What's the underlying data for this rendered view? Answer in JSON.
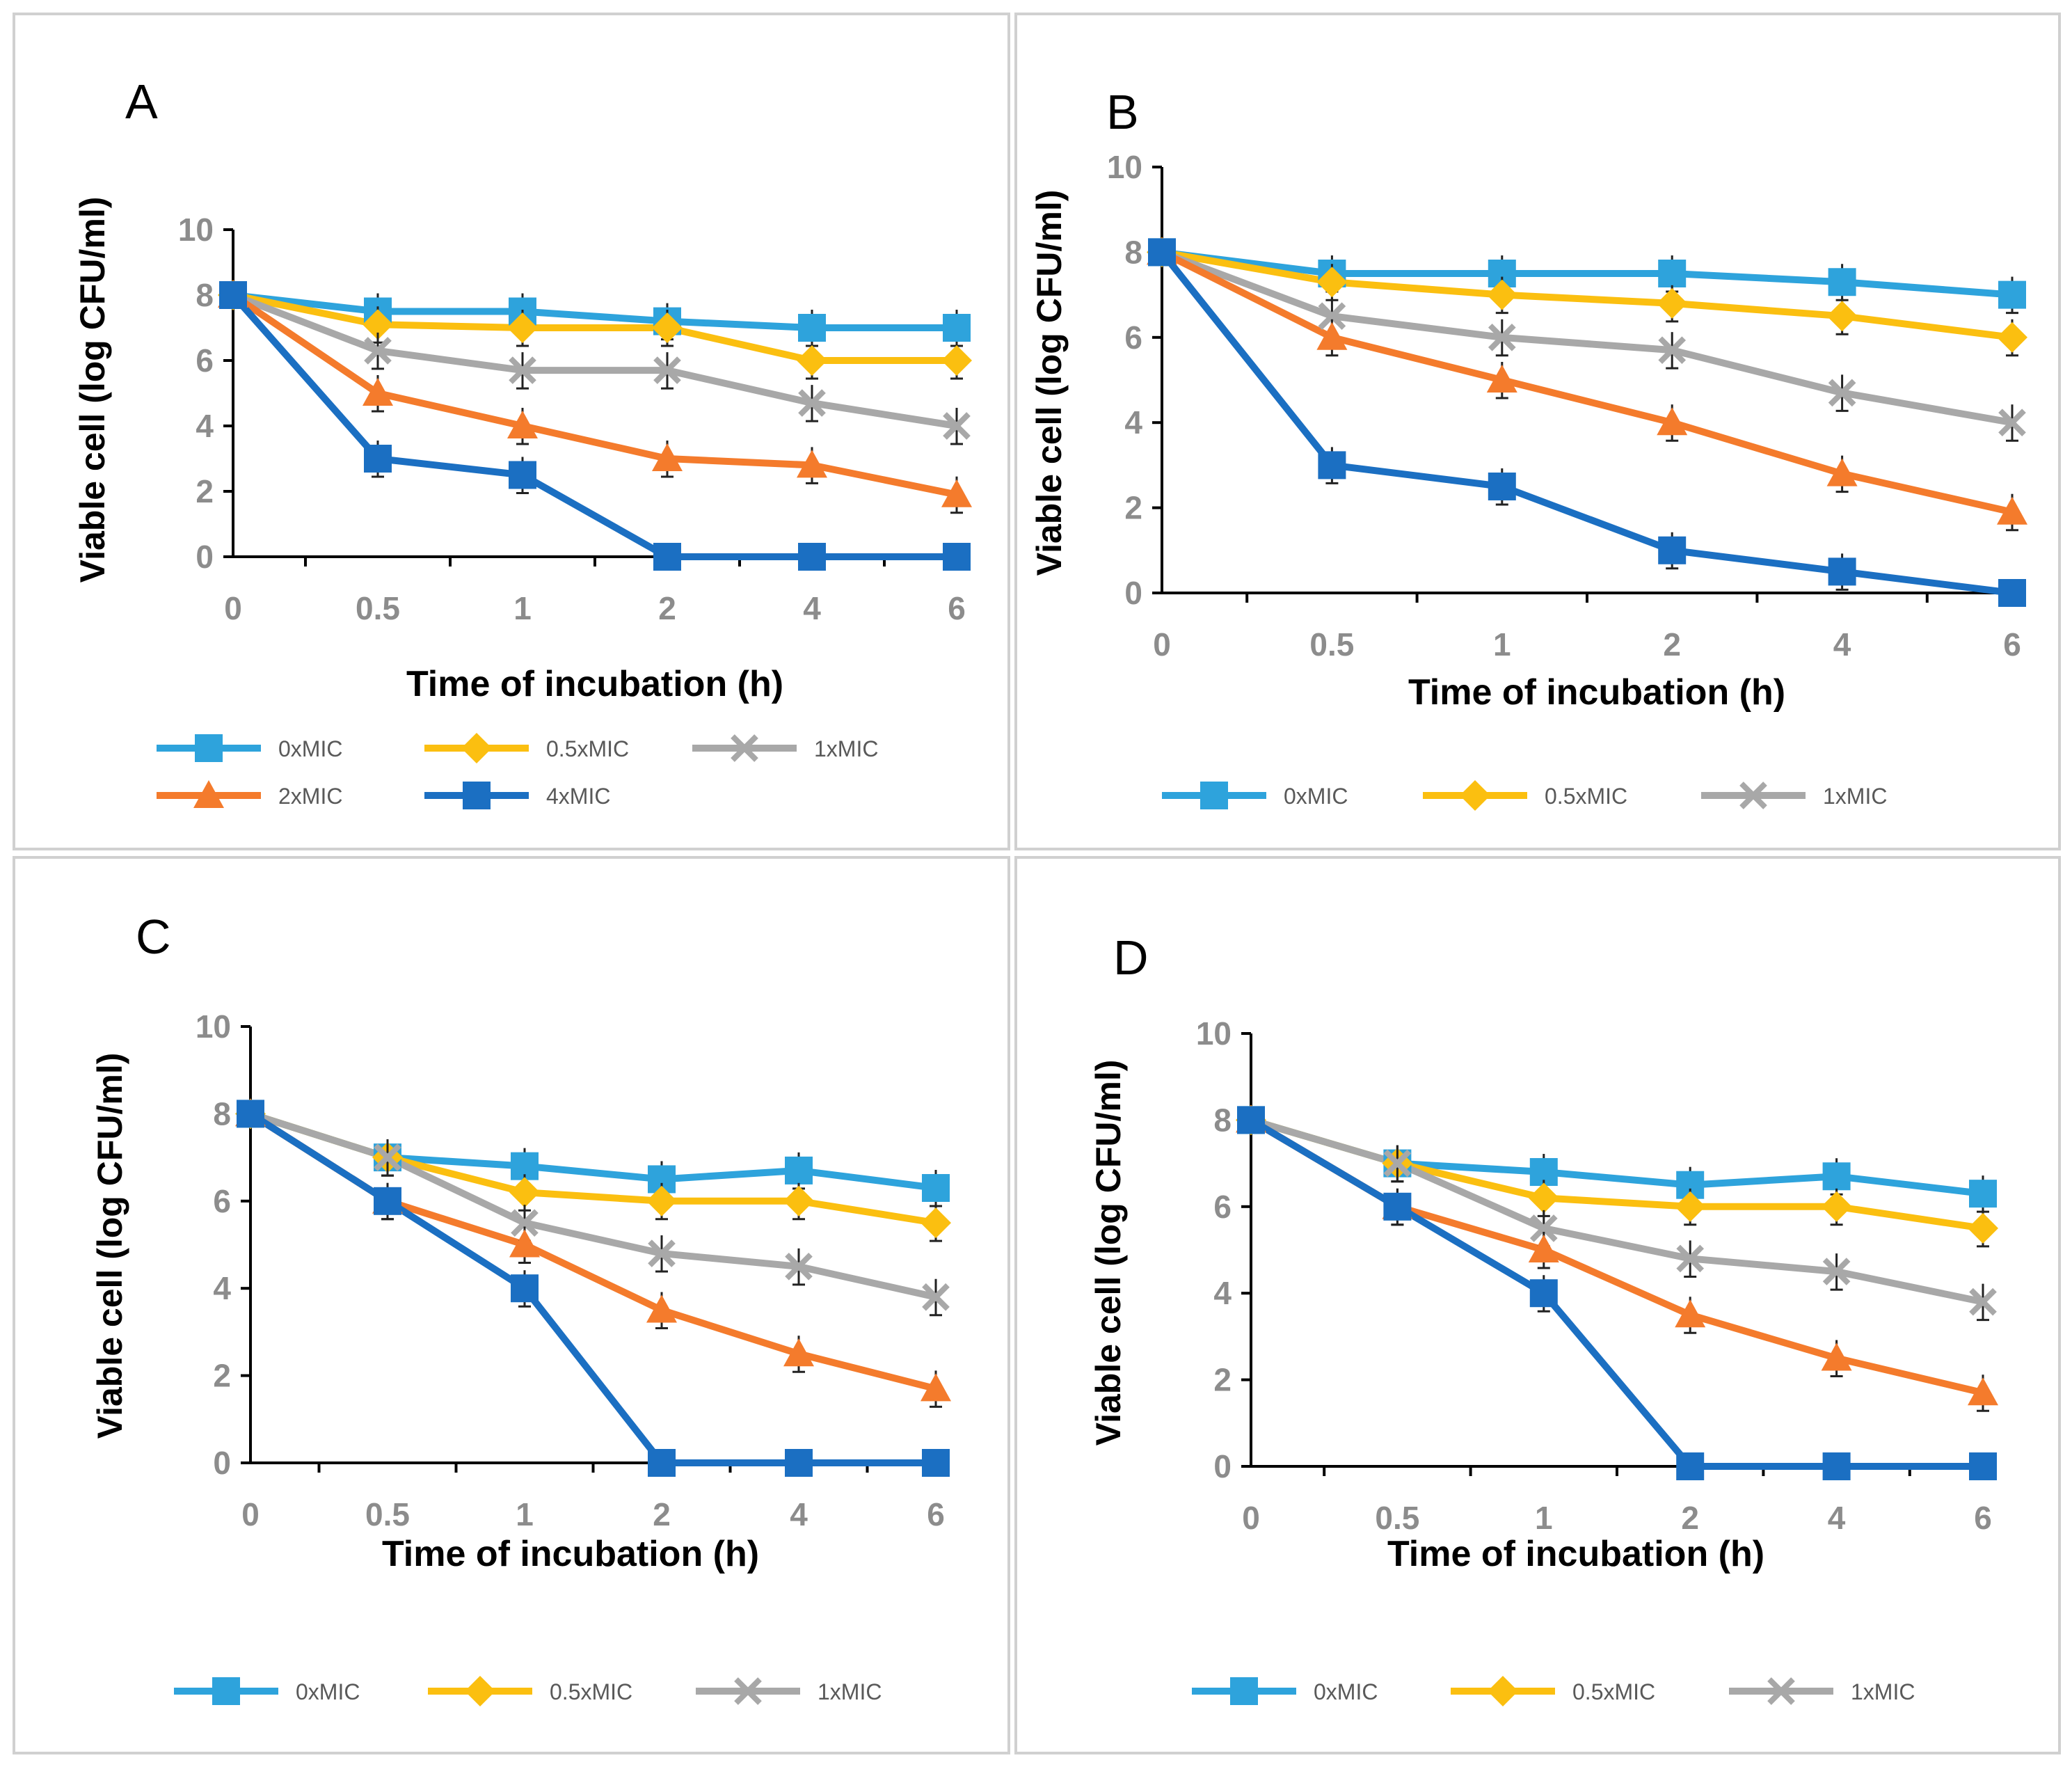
{
  "figure": {
    "panels": [
      "A",
      "B",
      "C",
      "D"
    ]
  },
  "colors": {
    "0xMIC": "#2ea3dc",
    "0.5xMIC": "#fbbf10",
    "1xMIC": "#a8a8a8",
    "2xMIC": "#f47b2c",
    "4xMIC": "#1b6fc2",
    "axis": "#000000",
    "tick_label": "#8c8c8c",
    "panel_border": "#d0d0d0"
  },
  "chart_data": [
    {
      "panel": "A",
      "type": "line",
      "xlabel": "Time of incubation (h)",
      "ylabel": "Viable cell (log CFU/ml)",
      "categories": [
        "0",
        "0.5",
        "1",
        "2",
        "4",
        "6"
      ],
      "ylim": [
        0,
        10
      ],
      "yticks": [
        "0",
        "2",
        "4",
        "6",
        "8",
        "10"
      ],
      "series": [
        {
          "name": "0xMIC",
          "marker": "square",
          "values": [
            8,
            7.5,
            7.5,
            7.2,
            7.0,
            7.0
          ]
        },
        {
          "name": "0.5xMIC",
          "marker": "diamond",
          "values": [
            8,
            7.1,
            7.0,
            7.0,
            6.0,
            6.0
          ]
        },
        {
          "name": "1xMIC",
          "marker": "x",
          "values": [
            8,
            6.3,
            5.7,
            5.7,
            4.7,
            4.0
          ]
        },
        {
          "name": "2xMIC",
          "marker": "triangle",
          "values": [
            8,
            5.0,
            4.0,
            3.0,
            2.8,
            1.9
          ]
        },
        {
          "name": "4xMIC",
          "marker": "square",
          "values": [
            8,
            3.0,
            2.5,
            0,
            0,
            0
          ]
        }
      ],
      "legend": [
        "0xMIC",
        "0.5xMIC",
        "1xMIC",
        "2xMIC",
        "4xMIC"
      ]
    },
    {
      "panel": "B",
      "type": "line",
      "xlabel": "Time of incubation (h)",
      "ylabel": "Viable cell (log CFU/ml)",
      "categories": [
        "0",
        "0.5",
        "1",
        "2",
        "4",
        "6"
      ],
      "ylim": [
        0,
        10
      ],
      "yticks": [
        "0",
        "2",
        "4",
        "6",
        "8",
        "10"
      ],
      "series": [
        {
          "name": "0xMIC",
          "marker": "square",
          "values": [
            8,
            7.5,
            7.5,
            7.5,
            7.3,
            7.0
          ]
        },
        {
          "name": "0.5xMIC",
          "marker": "diamond",
          "values": [
            8,
            7.3,
            7.0,
            6.8,
            6.5,
            6.0
          ]
        },
        {
          "name": "1xMIC",
          "marker": "x",
          "values": [
            8,
            6.5,
            6.0,
            5.7,
            4.7,
            4.0
          ]
        },
        {
          "name": "2xMIC",
          "marker": "triangle",
          "values": [
            8,
            6.0,
            5.0,
            4.0,
            2.8,
            1.9
          ]
        },
        {
          "name": "4xMIC",
          "marker": "square",
          "values": [
            8,
            3.0,
            2.5,
            1.0,
            0.5,
            0
          ]
        }
      ],
      "legend": [
        "0xMIC",
        "0.5xMIC",
        "1xMIC"
      ]
    },
    {
      "panel": "C",
      "type": "line",
      "xlabel": "Time of incubation (h)",
      "ylabel": "Viable cell (log CFU/ml)",
      "categories": [
        "0",
        "0.5",
        "1",
        "2",
        "4",
        "6"
      ],
      "ylim": [
        0,
        10
      ],
      "yticks": [
        "0",
        "2",
        "4",
        "6",
        "8",
        "10"
      ],
      "series": [
        {
          "name": "0xMIC",
          "marker": "square",
          "values": [
            8,
            7.0,
            6.8,
            6.5,
            6.7,
            6.3
          ]
        },
        {
          "name": "0.5xMIC",
          "marker": "diamond",
          "values": [
            8,
            7.0,
            6.2,
            6.0,
            6.0,
            5.5
          ]
        },
        {
          "name": "1xMIC",
          "marker": "x",
          "values": [
            8,
            7.0,
            5.5,
            4.8,
            4.5,
            3.8
          ]
        },
        {
          "name": "2xMIC",
          "marker": "triangle",
          "values": [
            8,
            6.0,
            5.0,
            3.5,
            2.5,
            1.7
          ]
        },
        {
          "name": "4xMIC",
          "marker": "square",
          "values": [
            8,
            6.0,
            4.0,
            0,
            0,
            0
          ]
        }
      ],
      "legend": [
        "0xMIC",
        "0.5xMIC",
        "1xMIC"
      ]
    },
    {
      "panel": "D",
      "type": "line",
      "xlabel": "Time of incubation (h)",
      "ylabel": "Viable cell (log CFU/ml)",
      "categories": [
        "0",
        "0.5",
        "1",
        "2",
        "4",
        "6"
      ],
      "ylim": [
        0,
        10
      ],
      "yticks": [
        "0",
        "2",
        "4",
        "6",
        "8",
        "10"
      ],
      "series": [
        {
          "name": "0xMIC",
          "marker": "square",
          "values": [
            8,
            7.0,
            6.8,
            6.5,
            6.7,
            6.3
          ]
        },
        {
          "name": "0.5xMIC",
          "marker": "diamond",
          "values": [
            8,
            7.0,
            6.2,
            6.0,
            6.0,
            5.5
          ]
        },
        {
          "name": "1xMIC",
          "marker": "x",
          "values": [
            8,
            7.0,
            5.5,
            4.8,
            4.5,
            3.8
          ]
        },
        {
          "name": "2xMIC",
          "marker": "triangle",
          "values": [
            8,
            6.0,
            5.0,
            3.5,
            2.5,
            1.7
          ]
        },
        {
          "name": "4xMIC",
          "marker": "square",
          "values": [
            8,
            6.0,
            4.0,
            0,
            0,
            0
          ]
        }
      ],
      "legend": [
        "0xMIC",
        "0.5xMIC",
        "1xMIC"
      ]
    }
  ]
}
